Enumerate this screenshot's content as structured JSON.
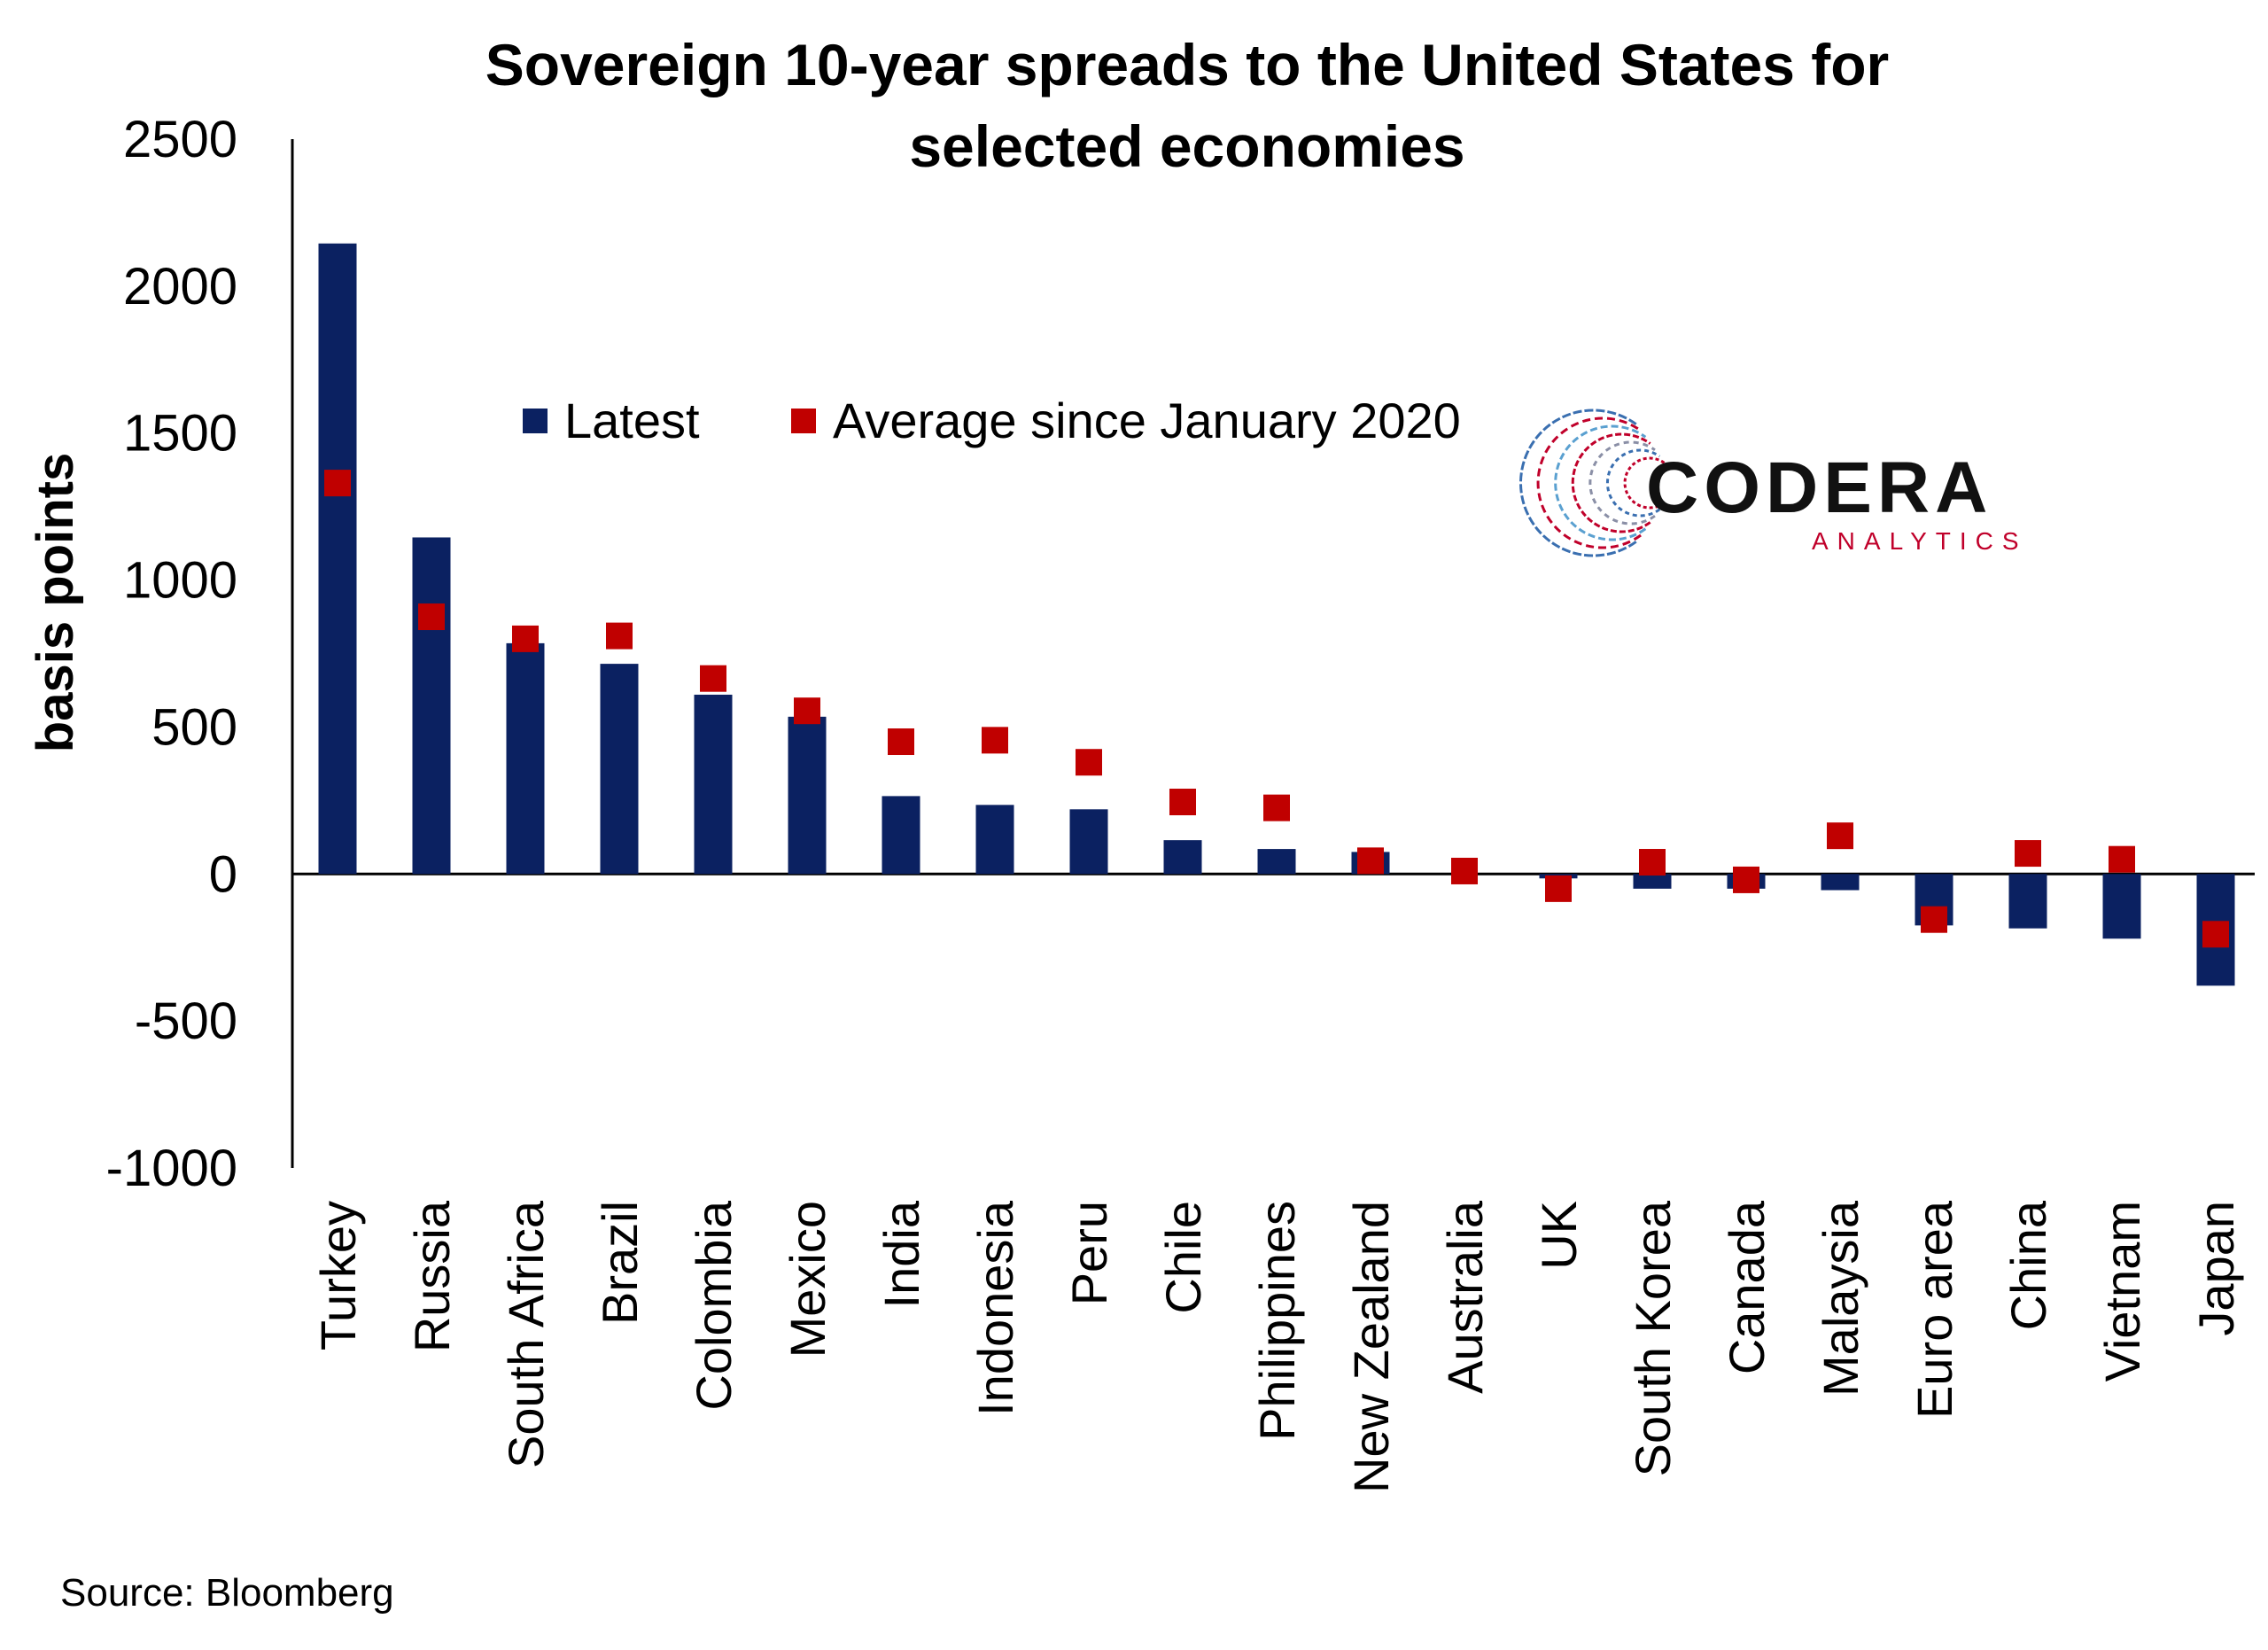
{
  "chart_data": {
    "type": "bar",
    "title_lines": [
      "Sovereign 10-year spreads to the United States for",
      "selected economies"
    ],
    "ylabel": "basis points",
    "xlabel": "",
    "ylim": [
      -1000,
      2500
    ],
    "yticks": [
      2500,
      2000,
      1500,
      1000,
      500,
      0,
      -500,
      -1000
    ],
    "grid": false,
    "legend_position": "top-center",
    "categories": [
      "Turkey",
      "Russia",
      "South Africa",
      "Brazil",
      "Colombia",
      "Mexico",
      "India",
      "Indonesia",
      "Peru",
      "Chile",
      "Philippines",
      "New Zealand",
      "Australia",
      "UK",
      "South Korea",
      "Canada",
      "Malaysia",
      "Euro area",
      "China",
      "Vietnam",
      "Japan"
    ],
    "series": [
      {
        "name": "Latest",
        "kind": "bar",
        "color": "#0b2161",
        "values": [
          2145,
          1145,
          785,
          715,
          610,
          535,
          265,
          235,
          220,
          115,
          85,
          75,
          0,
          -15,
          -50,
          -50,
          -55,
          -175,
          -185,
          -220,
          -380
        ]
      },
      {
        "name": "Average since January 2020",
        "kind": "marker",
        "color": "#c00000",
        "values": [
          1330,
          875,
          800,
          810,
          665,
          555,
          450,
          455,
          380,
          245,
          225,
          45,
          10,
          -50,
          40,
          -20,
          130,
          -155,
          70,
          50,
          -205
        ]
      }
    ],
    "source": "Source: Bloomberg"
  },
  "logo": {
    "name": "CODERA",
    "subtitle": "ANALYTICS"
  }
}
